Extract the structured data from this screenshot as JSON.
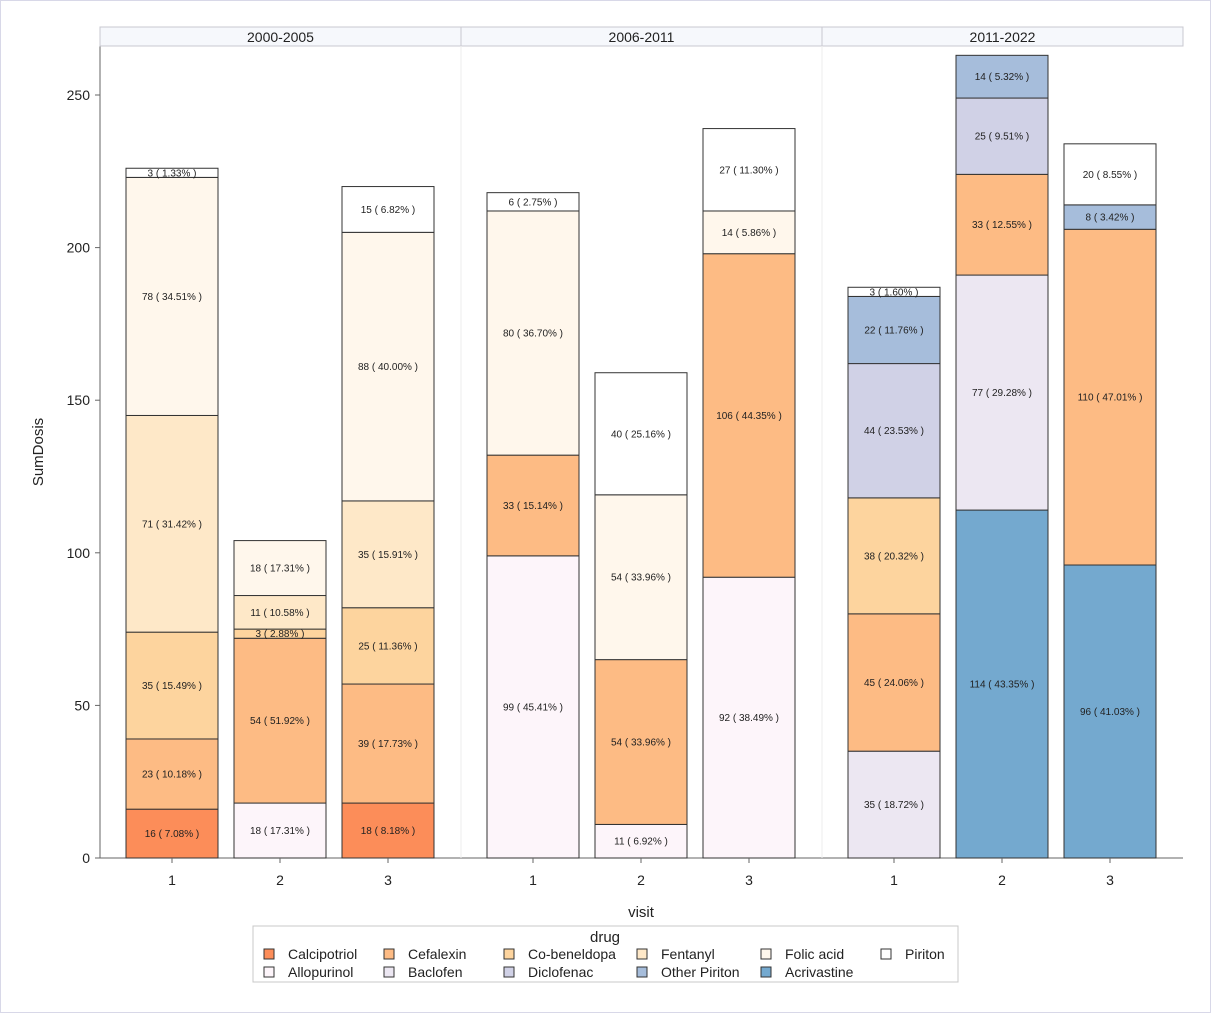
{
  "chart_data": {
    "type": "bar",
    "stacked": true,
    "xlabel": "visit",
    "ylabel": "SumDosis",
    "ylim": [
      0,
      265
    ],
    "yticks": [
      0,
      50,
      100,
      150,
      200,
      250
    ],
    "grid": false,
    "legend": {
      "title": "drug",
      "placement": "bottom",
      "entries": [
        {
          "name": "Calcipotriol",
          "color": "#FC8D59"
        },
        {
          "name": "Cefalexin",
          "color": "#FDBB84"
        },
        {
          "name": "Co-beneldopa",
          "color": "#FDD49E"
        },
        {
          "name": "Fentanyl",
          "color": "#FEE8C8"
        },
        {
          "name": "Folic acid",
          "color": "#FFF7EC"
        },
        {
          "name": "Piriton",
          "color": "#FFFFFF"
        },
        {
          "name": "Allopurinol",
          "color": "#FDF5FA"
        },
        {
          "name": "Baclofen",
          "color": "#ECE7F2"
        },
        {
          "name": "Diclofenac",
          "color": "#D0D1E6"
        },
        {
          "name": "Other Piriton",
          "color": "#A6BDDB"
        },
        {
          "name": "Acrivastine",
          "color": "#74A9CF"
        }
      ]
    },
    "panels": [
      {
        "title": "2000-2005",
        "bars": [
          {
            "visit": "1",
            "segments": [
              {
                "drug": "Calcipotriol",
                "value": 16,
                "label": "16 ( 7.08% )"
              },
              {
                "drug": "Cefalexin",
                "value": 23,
                "label": "23 ( 10.18% )"
              },
              {
                "drug": "Co-beneldopa",
                "value": 35,
                "label": "35 ( 15.49% )"
              },
              {
                "drug": "Fentanyl",
                "value": 71,
                "label": "71 ( 31.42% )"
              },
              {
                "drug": "Folic acid",
                "value": 78,
                "label": "78 ( 34.51% )"
              },
              {
                "drug": "Piriton",
                "value": 3,
                "label": "3 ( 1.33% )"
              }
            ]
          },
          {
            "visit": "2",
            "segments": [
              {
                "drug": "Allopurinol",
                "value": 18,
                "label": "18 ( 17.31% )"
              },
              {
                "drug": "Cefalexin",
                "value": 54,
                "label": "54 ( 51.92% )"
              },
              {
                "drug": "Co-beneldopa",
                "value": 3,
                "label": "3 ( 2.88% )"
              },
              {
                "drug": "Fentanyl",
                "value": 11,
                "label": "11 ( 10.58% )"
              },
              {
                "drug": "Folic acid",
                "value": 18,
                "label": "18 ( 17.31% )"
              }
            ]
          },
          {
            "visit": "3",
            "segments": [
              {
                "drug": "Calcipotriol",
                "value": 18,
                "label": "18 ( 8.18% )"
              },
              {
                "drug": "Cefalexin",
                "value": 39,
                "label": "39 ( 17.73% )"
              },
              {
                "drug": "Co-beneldopa",
                "value": 25,
                "label": "25 ( 11.36% )"
              },
              {
                "drug": "Fentanyl",
                "value": 35,
                "label": "35 ( 15.91% )"
              },
              {
                "drug": "Folic acid",
                "value": 88,
                "label": "88 ( 40.00% )"
              },
              {
                "drug": "Piriton",
                "value": 15,
                "label": "15 ( 6.82% )"
              }
            ]
          }
        ]
      },
      {
        "title": "2006-2011",
        "bars": [
          {
            "visit": "1",
            "segments": [
              {
                "drug": "Allopurinol",
                "value": 99,
                "label": "99 ( 45.41% )"
              },
              {
                "drug": "Cefalexin",
                "value": 33,
                "label": "33 ( 15.14% )"
              },
              {
                "drug": "Folic acid",
                "value": 80,
                "label": "80 ( 36.70% )"
              },
              {
                "drug": "Piriton",
                "value": 6,
                "label": "6 ( 2.75% )"
              }
            ]
          },
          {
            "visit": "2",
            "segments": [
              {
                "drug": "Allopurinol",
                "value": 11,
                "label": "11 ( 6.92% )"
              },
              {
                "drug": "Cefalexin",
                "value": 54,
                "label": "54 ( 33.96% )"
              },
              {
                "drug": "Folic acid",
                "value": 54,
                "label": "54 ( 33.96% )"
              },
              {
                "drug": "Piriton",
                "value": 40,
                "label": "40 ( 25.16% )"
              }
            ]
          },
          {
            "visit": "3",
            "segments": [
              {
                "drug": "Allopurinol",
                "value": 92,
                "label": "92 ( 38.49% )"
              },
              {
                "drug": "Cefalexin",
                "value": 106,
                "label": "106 ( 44.35% )"
              },
              {
                "drug": "Folic acid",
                "value": 14,
                "label": "14 ( 5.86% )"
              },
              {
                "drug": "Piriton",
                "value": 27,
                "label": "27 ( 11.30% )"
              }
            ]
          }
        ]
      },
      {
        "title": "2011-2022",
        "bars": [
          {
            "visit": "1",
            "segments": [
              {
                "drug": "Baclofen",
                "value": 35,
                "label": "35 ( 18.72% )"
              },
              {
                "drug": "Cefalexin",
                "value": 45,
                "label": "45 ( 24.06% )"
              },
              {
                "drug": "Co-beneldopa",
                "value": 38,
                "label": "38 ( 20.32% )"
              },
              {
                "drug": "Diclofenac",
                "value": 44,
                "label": "44 ( 23.53% )"
              },
              {
                "drug": "Other Piriton",
                "value": 22,
                "label": "22 ( 11.76% )"
              },
              {
                "drug": "Piriton",
                "value": 3,
                "label": "3 ( 1.60% )"
              }
            ]
          },
          {
            "visit": "2",
            "segments": [
              {
                "drug": "Acrivastine",
                "value": 114,
                "label": "114 ( 43.35% )"
              },
              {
                "drug": "Baclofen",
                "value": 77,
                "label": "77 ( 29.28% )"
              },
              {
                "drug": "Cefalexin",
                "value": 33,
                "label": "33 ( 12.55% )"
              },
              {
                "drug": "Diclofenac",
                "value": 25,
                "label": "25 ( 9.51% )"
              },
              {
                "drug": "Other Piriton",
                "value": 14,
                "label": "14 ( 5.32% )"
              }
            ]
          },
          {
            "visit": "3",
            "segments": [
              {
                "drug": "Acrivastine",
                "value": 96,
                "label": "96 ( 41.03% )"
              },
              {
                "drug": "Cefalexin",
                "value": 110,
                "label": "110 ( 47.01% )"
              },
              {
                "drug": "Other Piriton",
                "value": 8,
                "label": "8 ( 3.42% )"
              },
              {
                "drug": "Piriton",
                "value": 20,
                "label": "20 ( 8.55% )"
              }
            ]
          }
        ]
      }
    ]
  }
}
